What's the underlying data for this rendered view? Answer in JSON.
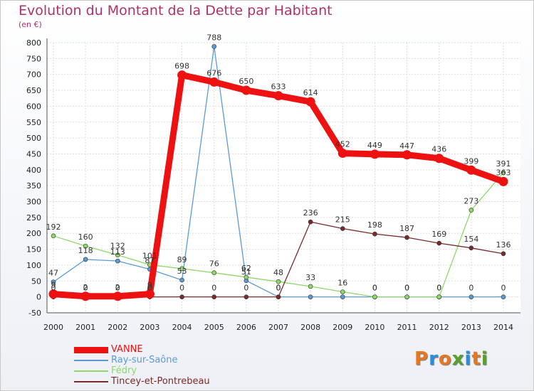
{
  "chart_data": {
    "type": "line",
    "title": "Evolution du Montant de la Dette par Habitant",
    "subtitle": "(en €)",
    "xlabel": "",
    "ylabel": "",
    "x": [
      "2000",
      "2001",
      "2002",
      "2003",
      "2004",
      "2005",
      "2006",
      "2007",
      "2008",
      "2009",
      "2010",
      "2011",
      "2012",
      "2013",
      "2014"
    ],
    "ylim": [
      -50,
      800
    ],
    "yticks": [
      -50,
      0,
      50,
      100,
      150,
      200,
      250,
      300,
      350,
      400,
      450,
      500,
      550,
      600,
      650,
      700,
      750,
      800
    ],
    "grid": true,
    "legend": "bottom-left",
    "series": [
      {
        "name": "VANNE",
        "color": "#ee1111",
        "values": [
          9,
          2,
          2,
          9,
          698,
          676,
          650,
          633,
          614,
          452,
          449,
          447,
          436,
          399,
          363
        ],
        "labels": [
          "9",
          "2",
          "2",
          "9",
          "698",
          "676",
          "650",
          "633",
          "614",
          "452",
          "449",
          "447",
          "436",
          "399",
          "363"
        ]
      },
      {
        "name": "Ray-sur-Saône",
        "color": "#5b9bd5",
        "values": [
          47,
          118,
          113,
          87,
          53,
          788,
          51,
          0,
          0,
          0,
          0,
          0,
          0,
          0,
          0
        ],
        "labels": [
          "47",
          "118",
          "113",
          "87",
          "53",
          "788",
          "51",
          "0",
          "",
          "",
          "0",
          "0",
          "0",
          "0",
          "0"
        ]
      },
      {
        "name": "Fédry",
        "color": "#8ed86a",
        "values": [
          192,
          160,
          132,
          101,
          89,
          76,
          62,
          48,
          33,
          16,
          0,
          0,
          0,
          273,
          391
        ],
        "labels": [
          "192",
          "160",
          "132",
          "101",
          "89",
          "76",
          "62",
          "48",
          "33",
          "16",
          "0",
          "0",
          "0",
          "273",
          "391"
        ]
      },
      {
        "name": "Tincey-et-Pontrebeau",
        "color": "#7a2a2a",
        "values": [
          0,
          0,
          0,
          0,
          0,
          0,
          0,
          0,
          236,
          215,
          198,
          187,
          169,
          154,
          136
        ],
        "labels": [
          "0",
          "0",
          "0",
          "0",
          "0",
          "0",
          "0",
          "0",
          "236",
          "215",
          "198",
          "187",
          "169",
          "154",
          "136"
        ]
      }
    ]
  },
  "branding": {
    "logo_letters": [
      "P",
      "r",
      "o",
      "x",
      "i",
      "t",
      "i"
    ],
    "logo_colors": [
      "#e87722",
      "#2a8fd8",
      "#e87722",
      "#5aa02c",
      "#2a8fd8",
      "#e87722",
      "#5aa02c"
    ]
  }
}
